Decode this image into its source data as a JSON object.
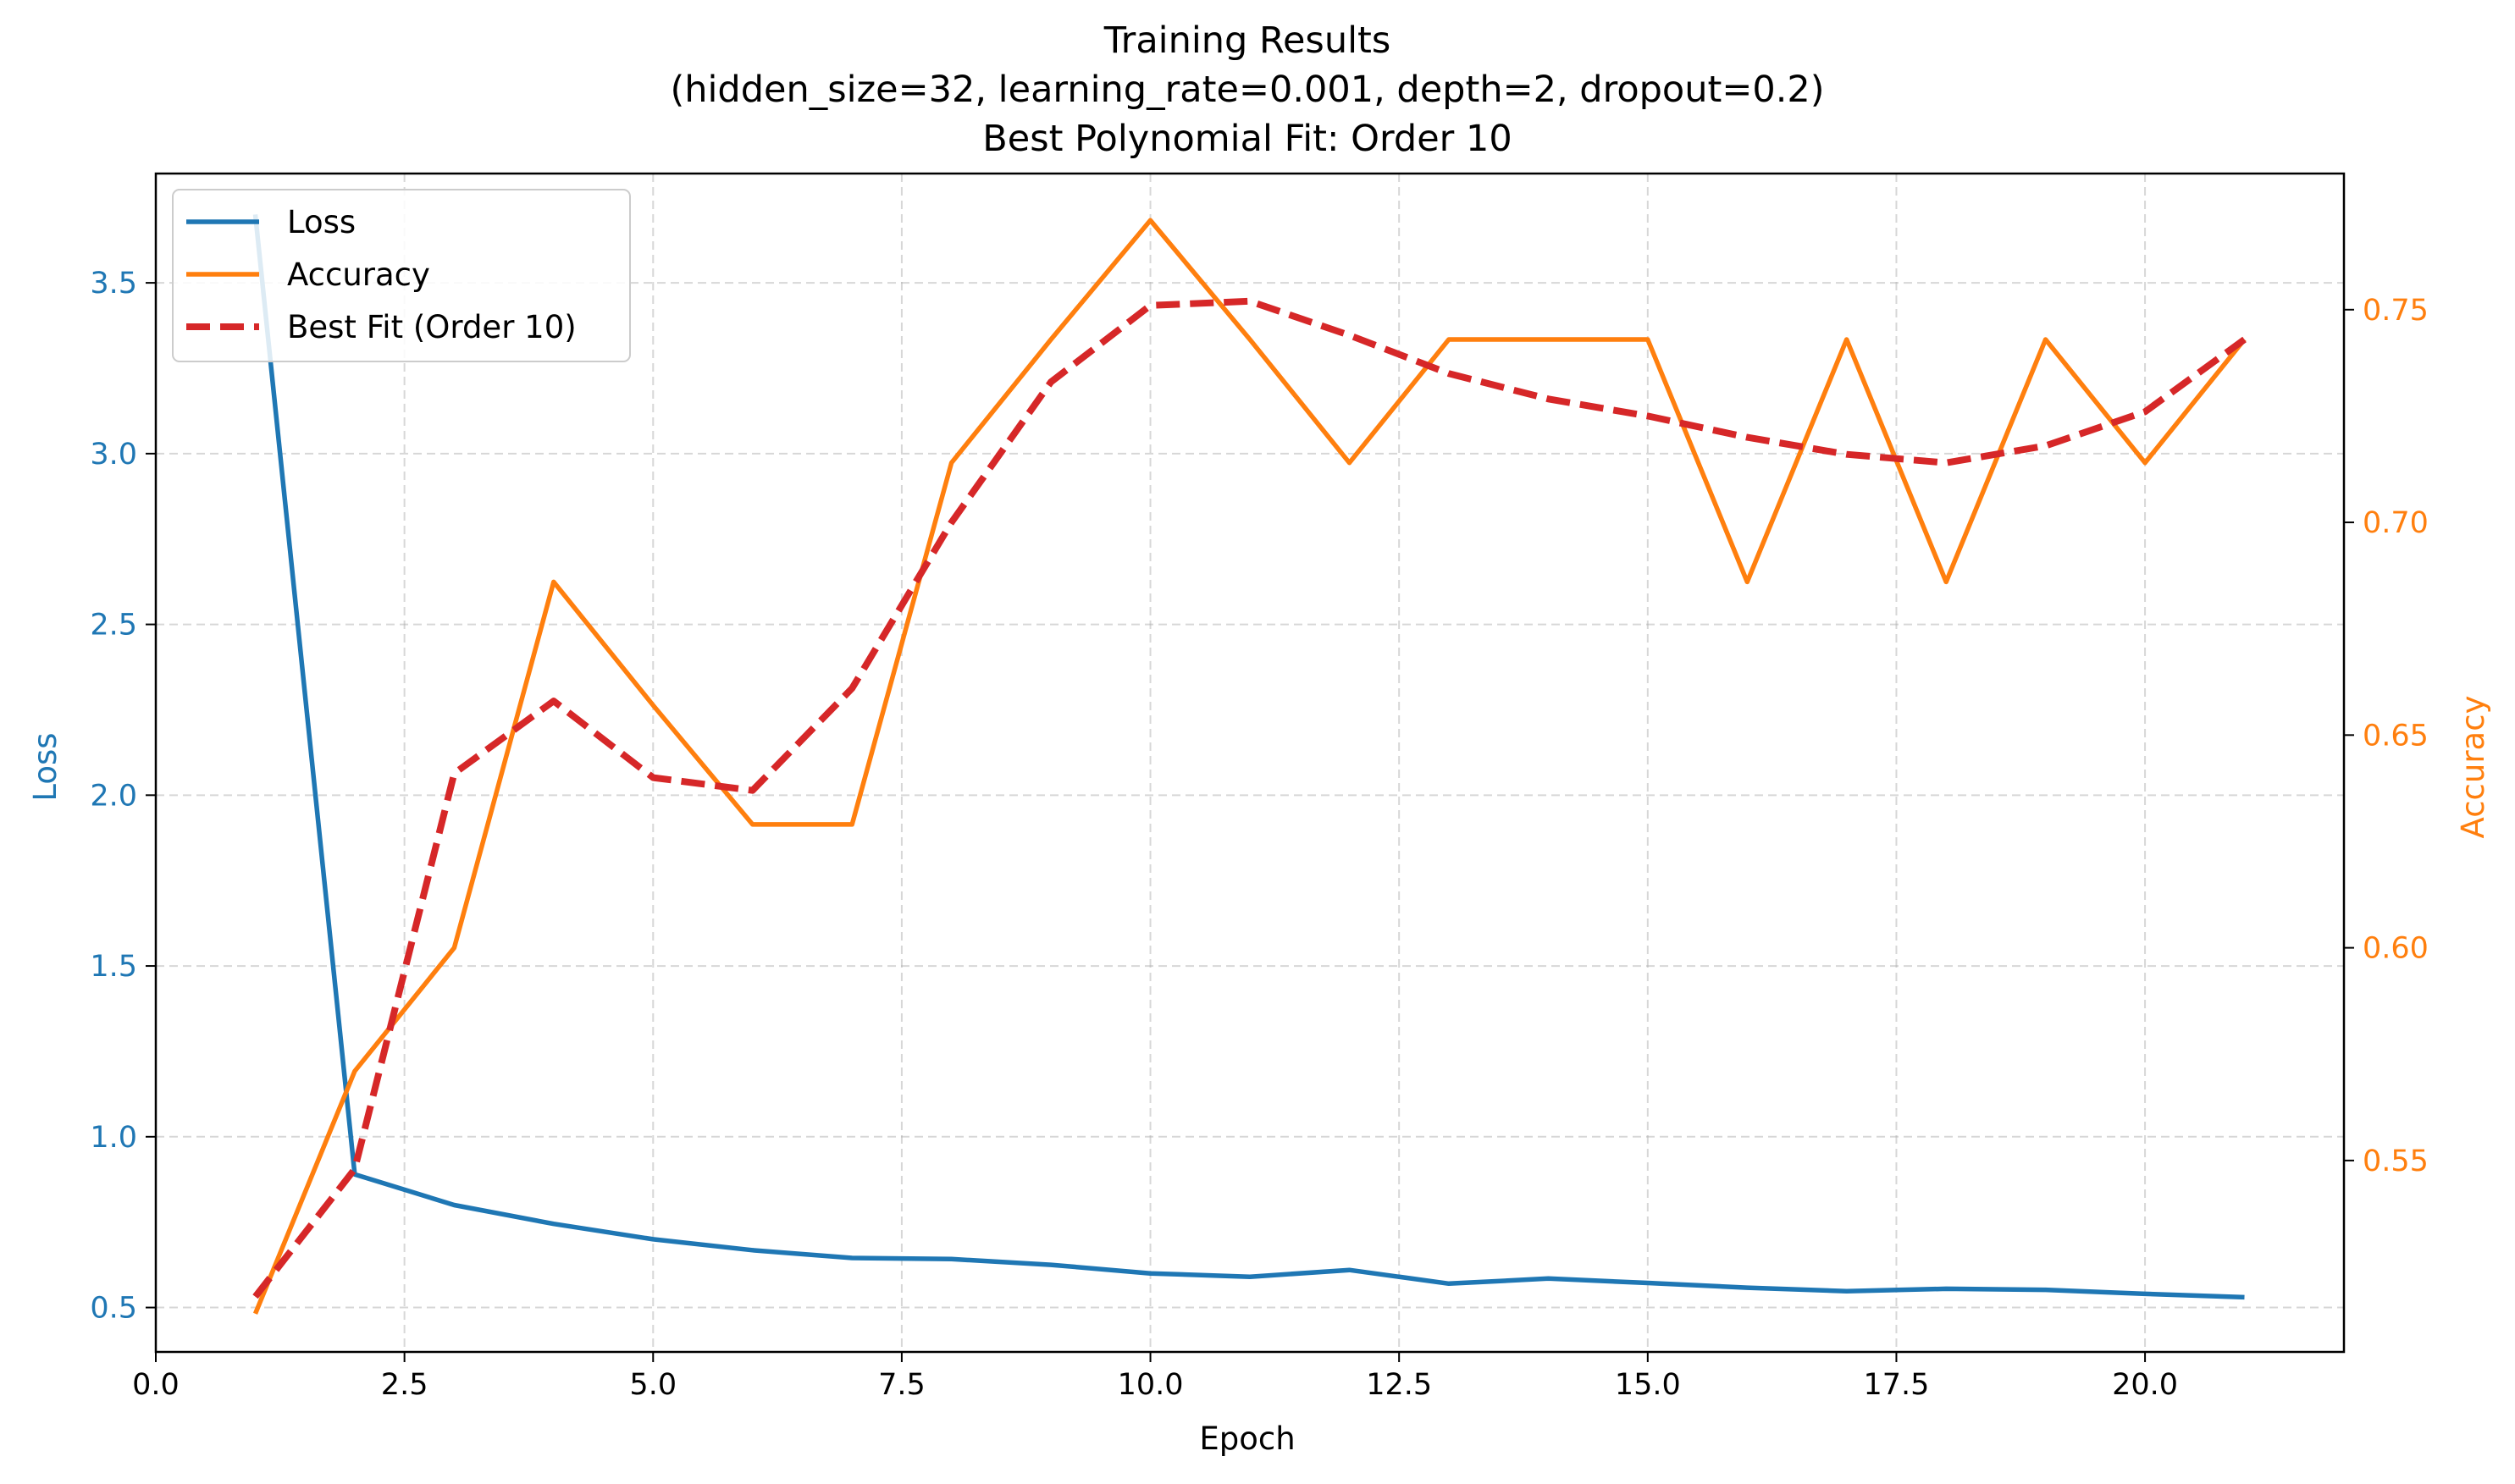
{
  "chart_data": {
    "type": "line",
    "title": [
      "Training Results",
      "(hidden_size=32, learning_rate=0.001, depth=2, dropout=0.2)",
      "Best Polynomial Fit: Order 10"
    ],
    "xlabel": "Epoch",
    "ylabel_left": "Loss",
    "ylabel_right": "Accuracy",
    "xlim": [
      0,
      22
    ],
    "ylim_left": [
      0.37,
      3.82
    ],
    "ylim_right": [
      0.505,
      0.782
    ],
    "x_ticks": [
      "0.0",
      "2.5",
      "5.0",
      "7.5",
      "10.0",
      "12.5",
      "15.0",
      "17.5",
      "20.0"
    ],
    "y_left_ticks": [
      "0.5",
      "1.0",
      "1.5",
      "2.0",
      "2.5",
      "3.0",
      "3.5"
    ],
    "y_right_ticks": [
      "0.55",
      "0.60",
      "0.65",
      "0.70",
      "0.75"
    ],
    "grid": true,
    "legend_position": "top-left",
    "x": [
      1,
      2,
      3,
      4,
      5,
      6,
      7,
      8,
      9,
      10,
      11,
      12,
      13,
      14,
      15,
      16,
      17,
      18,
      19,
      20,
      21
    ],
    "series": [
      {
        "name": "Loss",
        "axis": "left",
        "style": "solid",
        "color": "#1f77b4",
        "values": [
          3.7,
          0.89,
          0.8,
          0.745,
          0.7,
          0.668,
          0.645,
          0.642,
          0.625,
          0.6,
          0.59,
          0.61,
          0.57,
          0.585,
          0.572,
          0.558,
          0.548,
          0.555,
          0.552,
          0.54,
          0.53
        ]
      },
      {
        "name": "Accuracy",
        "axis": "right",
        "style": "solid",
        "color": "#ff7f0e",
        "values": [
          0.514,
          0.571,
          0.6,
          0.686,
          0.657,
          0.629,
          0.629,
          0.714,
          0.743,
          0.771,
          0.743,
          0.714,
          0.743,
          0.743,
          0.743,
          0.686,
          0.743,
          0.686,
          0.743,
          0.714,
          0.743
        ]
      },
      {
        "name": "Best Fit (Order 10)",
        "axis": "right",
        "style": "dashed",
        "color": "#d62728",
        "values": [
          0.518,
          0.548,
          0.641,
          0.658,
          0.64,
          0.637,
          0.661,
          0.7,
          0.733,
          0.751,
          0.752,
          0.744,
          0.735,
          0.729,
          0.725,
          0.72,
          0.716,
          0.714,
          0.718,
          0.726,
          0.743
        ]
      }
    ]
  }
}
